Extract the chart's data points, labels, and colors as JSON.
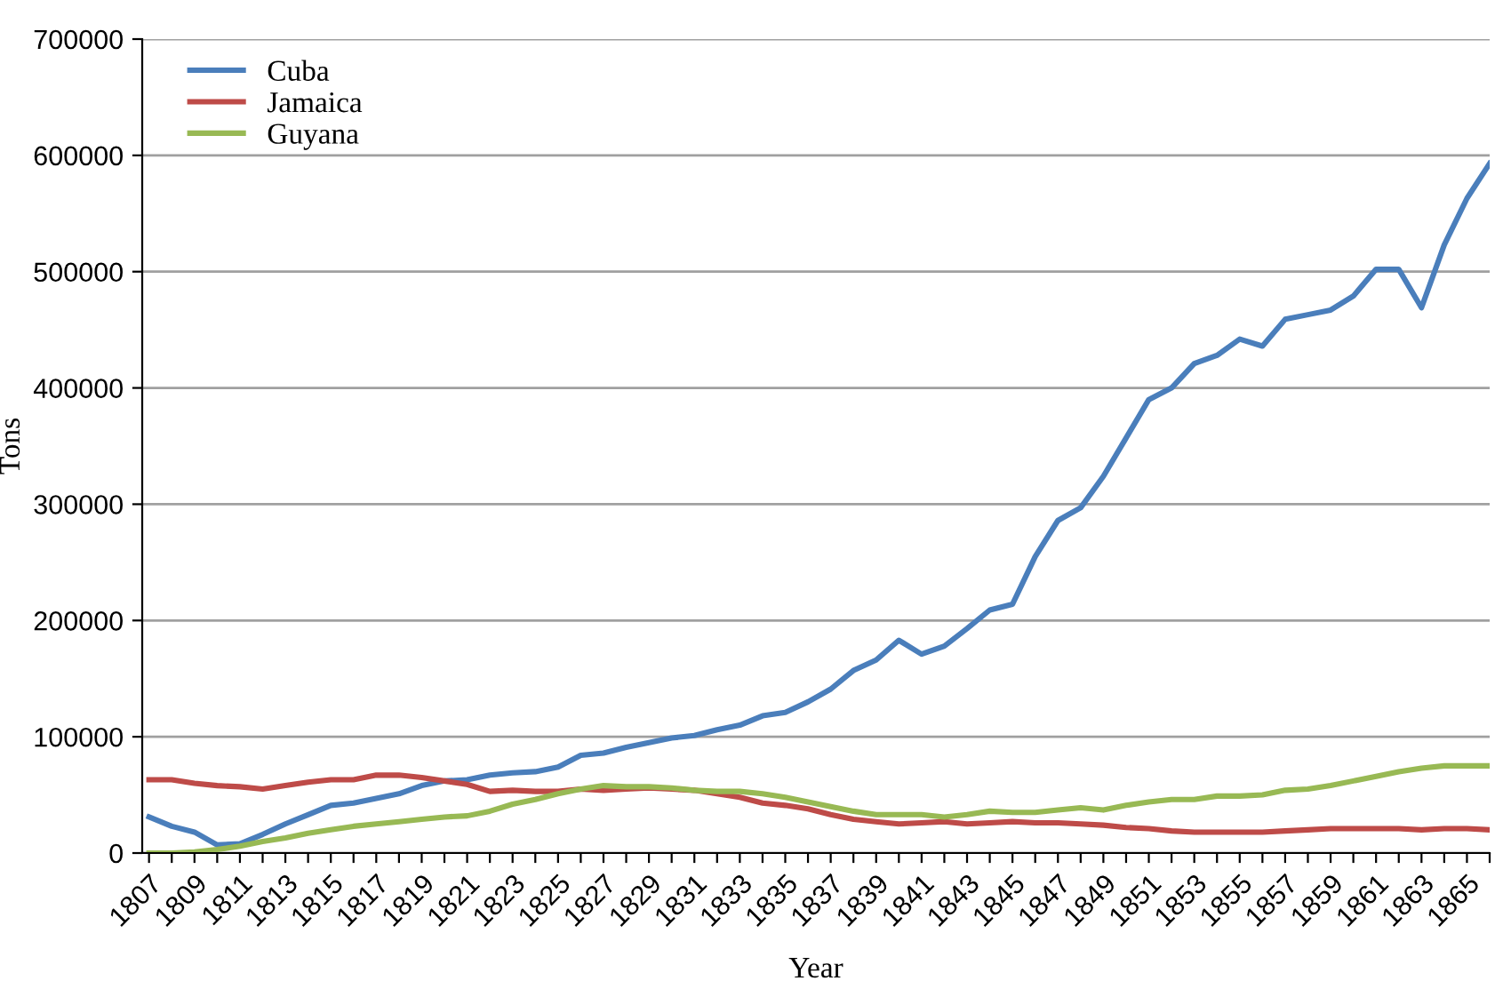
{
  "chart_data": {
    "type": "line",
    "xlabel": "Year",
    "ylabel": "Tons",
    "categories": [
      "1807",
      null,
      "1809",
      null,
      "1811",
      null,
      "1813",
      null,
      "1815",
      null,
      "1817",
      null,
      "1819",
      null,
      "1821",
      null,
      "1823",
      null,
      "1825",
      null,
      "1827",
      null,
      "1829",
      null,
      "1831",
      null,
      "1833",
      null,
      "1835",
      null,
      "1837",
      null,
      "1839",
      null,
      "1841",
      null,
      "1843",
      null,
      "1845",
      null,
      "1847",
      null,
      "1849",
      null,
      "1851",
      null,
      "1853",
      null,
      "1855",
      null,
      "1857",
      null,
      "1859",
      null,
      "1861",
      null,
      "1863",
      null,
      "1865",
      null
    ],
    "series": [
      {
        "name": "Cuba",
        "color": "#4a7ebb",
        "values": [
          31000,
          23000,
          18000,
          7000,
          8000,
          16000,
          25000,
          33000,
          41000,
          43000,
          47000,
          51000,
          58000,
          62000,
          63000,
          67000,
          69000,
          70000,
          74000,
          84000,
          86000,
          91000,
          95000,
          99000,
          101000,
          106000,
          110000,
          118000,
          121000,
          130000,
          141000,
          157000,
          166000,
          183000,
          171000,
          178000,
          193000,
          209000,
          214000,
          255000,
          286000,
          297000,
          324000,
          357000,
          390000,
          400000,
          421000,
          428000,
          442000,
          436000,
          459000,
          463000,
          467000,
          479000,
          502000,
          502000,
          469000,
          523000,
          563000,
          593000
        ]
      },
      {
        "name": "Jamaica",
        "color": "#be4b48",
        "values": [
          63000,
          63000,
          60000,
          58000,
          57000,
          55000,
          58000,
          61000,
          63000,
          63000,
          67000,
          67000,
          65000,
          62000,
          59000,
          53000,
          54000,
          53000,
          53000,
          55000,
          54000,
          55000,
          56000,
          55000,
          54000,
          51000,
          48000,
          43000,
          41000,
          38000,
          33000,
          29000,
          27000,
          25000,
          26000,
          27000,
          25000,
          26000,
          27000,
          26000,
          26000,
          25000,
          24000,
          22000,
          21000,
          19000,
          18000,
          18000,
          18000,
          18000,
          19000,
          20000,
          21000,
          21000,
          21000,
          21000,
          20000,
          21000,
          21000,
          20000
        ]
      },
      {
        "name": "Guyana",
        "color": "#98b954",
        "values": [
          0,
          0,
          1000,
          3000,
          6000,
          10000,
          13000,
          17000,
          20000,
          23000,
          25000,
          27000,
          29000,
          31000,
          32000,
          36000,
          42000,
          46000,
          51000,
          55000,
          58000,
          57000,
          57000,
          56000,
          54000,
          53000,
          53000,
          51000,
          48000,
          44000,
          40000,
          36000,
          33000,
          33000,
          33000,
          31000,
          33000,
          36000,
          35000,
          35000,
          37000,
          39000,
          37000,
          41000,
          44000,
          46000,
          46000,
          49000,
          49000,
          50000,
          54000,
          55000,
          58000,
          62000,
          66000,
          70000,
          73000,
          75000,
          75000,
          75000
        ]
      }
    ],
    "ylim": [
      0,
      700000
    ],
    "yticks": [
      0,
      100000,
      200000,
      300000,
      400000,
      500000,
      600000,
      700000
    ],
    "grid": "y",
    "legend": "top left",
    "marker": "none",
    "line_style": "solid"
  }
}
